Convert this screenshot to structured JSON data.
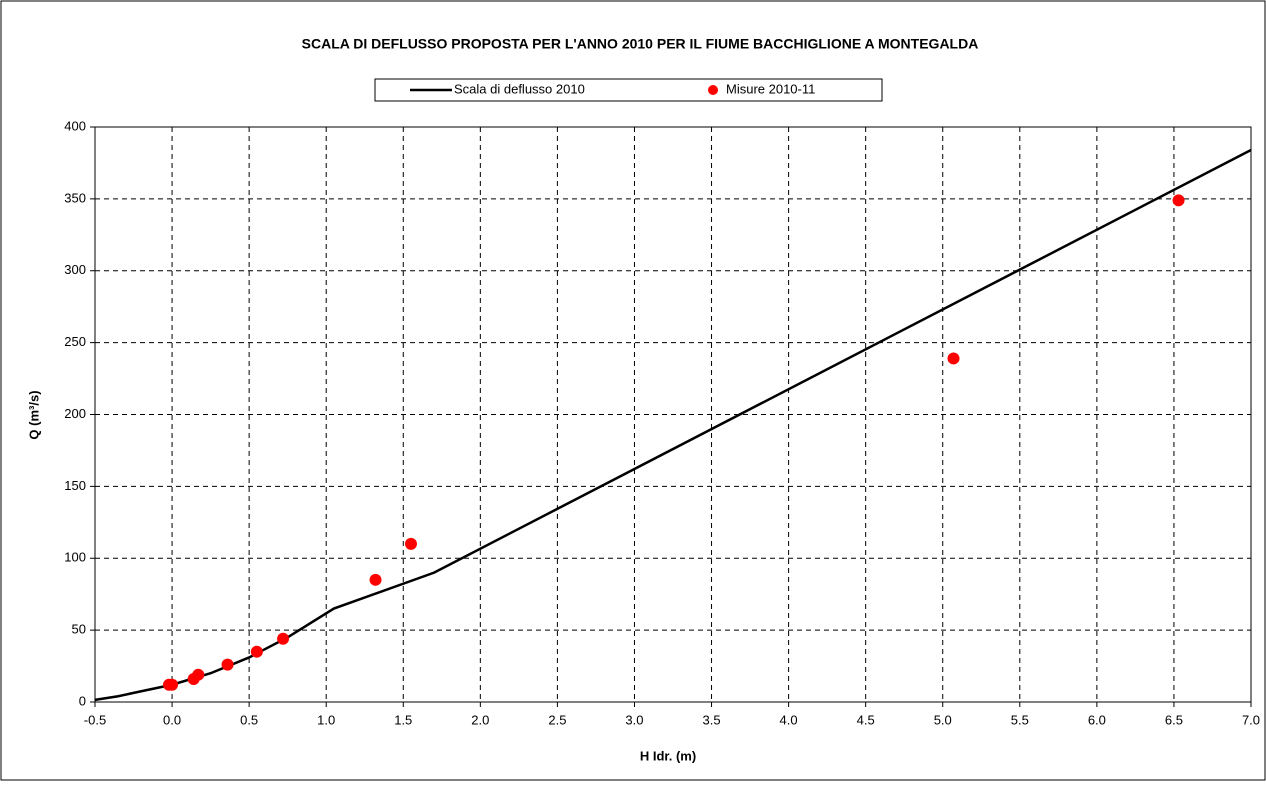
{
  "chart_data": {
    "type": "scatter",
    "title": "SCALA DI DEFLUSSO PROPOSTA PER L'ANNO 2010 PER IL FIUME BACCHIGLIONE A MONTEGALDA",
    "x_label": "H Idr. (m)",
    "y_label": "Q (m³/s)",
    "series": [
      {
        "name": "Scala di deflusso 2010",
        "color": "#000000",
        "style": "line",
        "x": [
          -0.5,
          -0.35,
          -0.2,
          0,
          0.25,
          0.5,
          0.75,
          1.05,
          1.7,
          7.0
        ],
        "values": [
          1.5,
          4,
          7.5,
          12,
          20,
          31,
          45,
          65,
          90,
          384
        ]
      },
      {
        "name": "Misure 2010-11",
        "color": "#ff0000",
        "style": "marker",
        "x": [
          -0.02,
          0.0,
          0.14,
          0.17,
          0.36,
          0.55,
          0.72,
          1.32,
          1.55,
          5.07,
          6.53
        ],
        "values": [
          12,
          12,
          16,
          19,
          26,
          35,
          44,
          85,
          110,
          239,
          349
        ]
      }
    ],
    "xlim": [
      -0.5,
      7.0
    ],
    "xticks": [
      -0.5,
      {
        "value": 0,
        "label": "0.0"
      },
      0.5,
      {
        "value": 1,
        "label": "1.0"
      },
      1.5,
      {
        "value": 2,
        "label": "2.0"
      },
      2.5,
      {
        "value": 3,
        "label": "3.0"
      },
      3.5,
      {
        "value": 4,
        "label": "4.0"
      },
      4.5,
      {
        "value": 5,
        "label": "5.0"
      },
      5.5,
      {
        "value": 6,
        "label": "6.0"
      },
      6.5,
      {
        "value": 7,
        "label": "7.0"
      }
    ],
    "ylim": [
      0,
      400
    ],
    "yticks": [
      0,
      50,
      100,
      150,
      200,
      250,
      300,
      350,
      400
    ],
    "grid": true,
    "legend": "top"
  }
}
